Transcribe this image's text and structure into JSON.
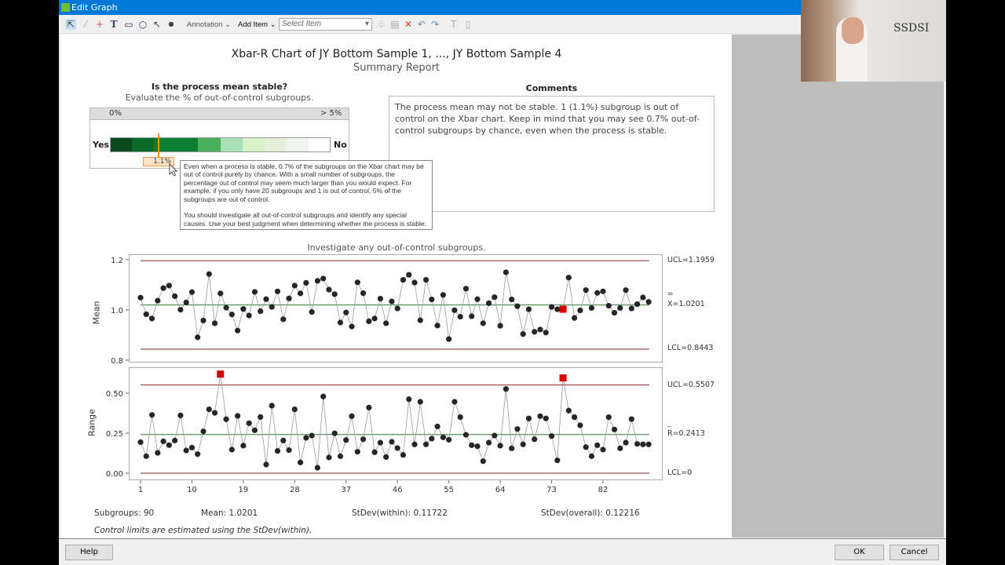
{
  "window": {
    "title": "Edit Graph"
  },
  "toolbar": {
    "annotation_label": "Annotation",
    "add_item_label": "Add Item",
    "select_placeholder": "Select Item"
  },
  "report": {
    "title": "Xbar-R Chart of JY Bottom Sample 1, ..., JY Bottom Sample 4",
    "subtitle": "Summary Report"
  },
  "stability": {
    "question": "Is the process mean stable?",
    "instruction": "Evaluate the % of out-of-control subgroups.",
    "scale_min": "0%",
    "scale_max": "> 5%",
    "yes_label": "Yes",
    "no_label": "No",
    "value_label": "1.1%",
    "value_percent": 1.1,
    "segment_colors": [
      "#0b4a1c",
      "#0a6a25",
      "#0d7d2f",
      "#0d7d2f",
      "#4caf5e",
      "#a7e0b9",
      "#d8f2c5",
      "#e4efdc",
      "#eef3ee",
      "#ffffff"
    ]
  },
  "tooltip": {
    "text": "Even when a process is stable, 0.7% of the subgroups on the Xbar chart may be out of control purely by chance. With a small number of subgroups, the percentage out of control may seem much larger than you would expect. For example, if you only have 20 subgroups and 1 is out of control, 5% of the subgroups are out of control.\n\nYou should investigate all out-of-control subgroups and identify any special causes. Use your best judgment when determining whether the process is stable."
  },
  "comments": {
    "heading": "Comments",
    "text": "The process mean may not be stable. 1 (1.1%) subgroup is out of control on the Xbar chart. Keep in mind that you may see 0.7% out-of-control subgroups by chance, even when the process is stable."
  },
  "investigate_text": "Investigate any out-of-control subgroups.",
  "stats": {
    "subgroups": "Subgroups: 90",
    "mean": "Mean: 1.0201",
    "stdev_within": "StDev(within): 0.11722",
    "stdev_overall": "StDev(overall): 0.12216",
    "note": "Control limits are estimated using the StDev(within)."
  },
  "buttons": {
    "help": "Help",
    "ok": "OK",
    "cancel": "Cancel"
  },
  "webcam": {
    "logo": "SSDSI"
  },
  "chart_data": [
    {
      "type": "line",
      "ylabel": "Mean",
      "ylim": [
        0.8,
        1.2
      ],
      "yticks": [
        "0.8",
        "1.0",
        "1.2"
      ],
      "xticks": [
        "1",
        "10",
        "19",
        "28",
        "37",
        "46",
        "55",
        "64",
        "73",
        "82"
      ],
      "ucl": 1.1959,
      "center": 1.0201,
      "lcl": 0.8443,
      "ucl_label": "UCL=1.1959",
      "center_label": "X=1.0201",
      "center_bar": "=",
      "lcl_label": "LCL=0.8443",
      "colors": {
        "point": "#262626",
        "flag": "#d40000",
        "center": "#2e7d32",
        "limit": "#8b2a2a"
      },
      "flagged": [
        75
      ],
      "values": [
        1.049,
        0.983,
        0.966,
        1.037,
        1.087,
        1.097,
        1.055,
        1.001,
        1.03,
        1.071,
        0.891,
        0.958,
        1.143,
        0.947,
        1.066,
        1.009,
        0.982,
        0.918,
        1.004,
        0.978,
        1.072,
        0.995,
        1.043,
        1.012,
        1.074,
        0.963,
        1.046,
        1.097,
        1.066,
        1.108,
        0.992,
        1.116,
        1.125,
        1.081,
        1.063,
        0.95,
        0.99,
        0.934,
        1.11,
        1.067,
        0.955,
        0.966,
        1.045,
        0.947,
        1.034,
        1.006,
        1.12,
        1.14,
        1.109,
        0.959,
        1.12,
        1.042,
        0.938,
        1.06,
        0.884,
        0.999,
        0.973,
        1.085,
        0.975,
        1.043,
        0.947,
        1.027,
        1.051,
        0.937,
        1.15,
        1.042,
        1.015,
        0.904,
        1.003,
        0.913,
        0.922,
        0.91,
        1.012,
        1.003,
        1.003,
        1.129,
        0.968,
        0.998,
        1.079,
        1.008,
        1.068,
        1.074,
        1.017,
        0.989,
        1.008,
        1.079,
        1.006,
        1.023,
        1.05,
        1.032
      ]
    },
    {
      "type": "line",
      "ylabel": "Range",
      "ylim": [
        0,
        0.6
      ],
      "yticks": [
        "0.00",
        "0.25",
        "0.50"
      ],
      "xticks": [
        "1",
        "10",
        "19",
        "28",
        "37",
        "46",
        "55",
        "64",
        "73",
        "82"
      ],
      "ucl": 0.5507,
      "center": 0.2413,
      "lcl": 0,
      "ucl_label": "UCL=0.5507",
      "center_label": "R=0.2413",
      "center_bar": "_",
      "lcl_label": "LCL=0",
      "colors": {
        "point": "#262626",
        "flag": "#d40000",
        "center": "#2e7d32",
        "limit": "#8b2a2a"
      },
      "flagged": [
        15,
        75
      ],
      "values": [
        0.194,
        0.106,
        0.364,
        0.127,
        0.199,
        0.175,
        0.204,
        0.361,
        0.142,
        0.16,
        0.119,
        0.261,
        0.399,
        0.377,
        0.619,
        0.337,
        0.147,
        0.358,
        0.172,
        0.312,
        0.268,
        0.351,
        0.054,
        0.422,
        0.139,
        0.204,
        0.144,
        0.399,
        0.067,
        0.221,
        0.235,
        0.034,
        0.479,
        0.098,
        0.249,
        0.106,
        0.207,
        0.356,
        0.134,
        0.212,
        0.41,
        0.131,
        0.191,
        0.101,
        0.196,
        0.157,
        0.114,
        0.462,
        0.18,
        0.446,
        0.18,
        0.216,
        0.292,
        0.224,
        0.209,
        0.446,
        0.35,
        0.24,
        0.175,
        0.168,
        0.075,
        0.191,
        0.235,
        0.172,
        0.526,
        0.155,
        0.276,
        0.18,
        0.342,
        0.212,
        0.356,
        0.342,
        0.232,
        0.08,
        0.595,
        0.391,
        0.35,
        0.299,
        0.163,
        0.106,
        0.175,
        0.147,
        0.35,
        0.273,
        0.155,
        0.191,
        0.338,
        0.183,
        0.18,
        0.18
      ]
    }
  ]
}
